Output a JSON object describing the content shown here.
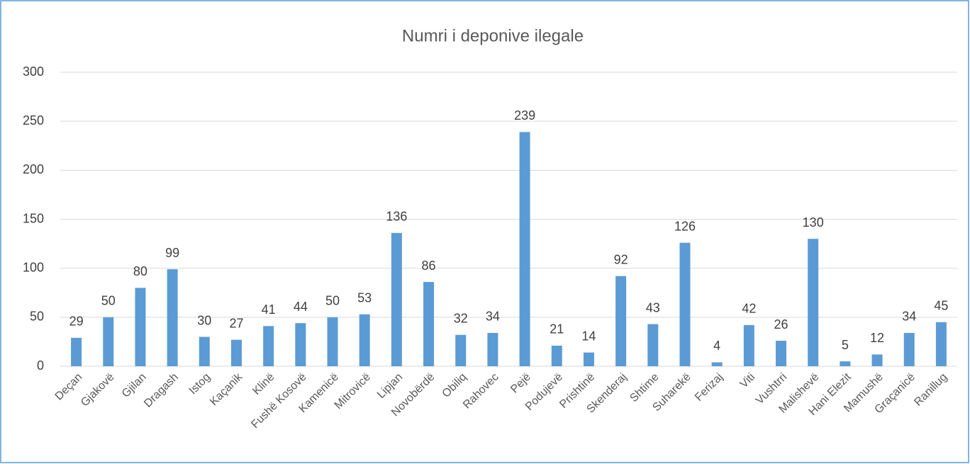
{
  "chart_data": {
    "type": "bar",
    "title": "Numri i deponive ilegale",
    "categories": [
      "Deçan",
      "Gjakovë",
      "Gjilan",
      "Dragash",
      "Istog",
      "Kaçanik",
      "Klinë",
      "Fushë Kosovë",
      "Kamenicë",
      "Mitrovicë",
      "Lipjan",
      "Novobërdë",
      "Obiliq",
      "Rahovec",
      "Pejë",
      "Podujevë",
      "Prishtinë",
      "Skenderaj",
      "Shtime",
      "Suharekë",
      "Ferizaj",
      "Viti",
      "Vushtrri",
      "Malishevë",
      "Hani Elezit",
      "Mamushë",
      "Graçanicë",
      "Ranillug"
    ],
    "values": [
      29,
      50,
      80,
      99,
      30,
      27,
      41,
      44,
      50,
      53,
      136,
      86,
      32,
      34,
      239,
      21,
      14,
      92,
      43,
      126,
      4,
      42,
      26,
      130,
      5,
      12,
      34,
      45
    ],
    "color": "#5b9bd5",
    "ylim": [
      0,
      300
    ],
    "yticks": [
      0,
      50,
      100,
      150,
      200,
      250,
      300
    ],
    "grid": true
  }
}
